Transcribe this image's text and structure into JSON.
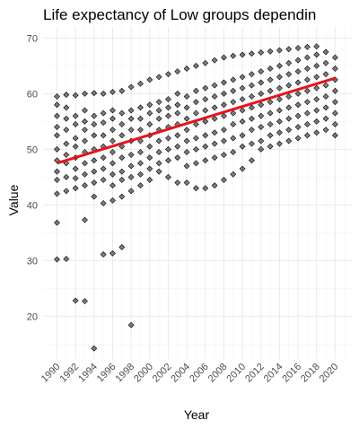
{
  "chart_data": {
    "type": "scatter",
    "title": "Life expectancy of Low groups dependin",
    "xlabel": "Year",
    "ylabel": "Value",
    "xlim": [
      1988.5,
      2021.8
    ],
    "ylim": [
      12.3,
      72
    ],
    "x_ticks": [
      1990,
      1992,
      1994,
      1996,
      1998,
      2000,
      2002,
      2004,
      2006,
      2008,
      2010,
      2012,
      2014,
      2016,
      2018,
      2020
    ],
    "y_ticks": [
      20,
      30,
      40,
      50,
      60,
      70
    ],
    "grid": true,
    "trend_line": {
      "x": [
        1990,
        2020
      ],
      "y": [
        47.5,
        62.8
      ],
      "color": "#e4141b"
    },
    "points": [
      [
        1990,
        30.2
      ],
      [
        1990,
        36.8
      ],
      [
        1990,
        42.0
      ],
      [
        1990,
        44.5
      ],
      [
        1990,
        46.0
      ],
      [
        1990,
        48.0
      ],
      [
        1990,
        50.0
      ],
      [
        1990,
        52.5
      ],
      [
        1990,
        54.0
      ],
      [
        1990,
        56.0
      ],
      [
        1990,
        58.0
      ],
      [
        1990,
        59.5
      ],
      [
        1991,
        30.3
      ],
      [
        1991,
        42.5
      ],
      [
        1991,
        45.0
      ],
      [
        1991,
        47.5
      ],
      [
        1991,
        49.0
      ],
      [
        1991,
        51.0
      ],
      [
        1991,
        53.5
      ],
      [
        1991,
        55.5
      ],
      [
        1991,
        57.5
      ],
      [
        1991,
        59.8
      ],
      [
        1992,
        22.8
      ],
      [
        1992,
        43.0
      ],
      [
        1992,
        44.8
      ],
      [
        1992,
        46.5
      ],
      [
        1992,
        48.5
      ],
      [
        1992,
        50.5
      ],
      [
        1992,
        52.0
      ],
      [
        1992,
        54.5
      ],
      [
        1992,
        56.0
      ],
      [
        1992,
        59.7
      ],
      [
        1993,
        22.7
      ],
      [
        1993,
        37.3
      ],
      [
        1993,
        43.5
      ],
      [
        1993,
        45.5
      ],
      [
        1993,
        47.5
      ],
      [
        1993,
        49.5
      ],
      [
        1993,
        51.5
      ],
      [
        1993,
        53.5
      ],
      [
        1993,
        55.0
      ],
      [
        1993,
        57.0
      ],
      [
        1993,
        60.0
      ],
      [
        1994,
        14.2
      ],
      [
        1994,
        41.5
      ],
      [
        1994,
        44.0
      ],
      [
        1994,
        46.0
      ],
      [
        1994,
        48.0
      ],
      [
        1994,
        50.0
      ],
      [
        1994,
        52.5
      ],
      [
        1994,
        54.5
      ],
      [
        1994,
        56.0
      ],
      [
        1994,
        60.1
      ],
      [
        1995,
        31.1
      ],
      [
        1995,
        40.3
      ],
      [
        1995,
        44.5
      ],
      [
        1995,
        46.5
      ],
      [
        1995,
        48.5
      ],
      [
        1995,
        50.5
      ],
      [
        1995,
        52.5
      ],
      [
        1995,
        54.8
      ],
      [
        1995,
        56.5
      ],
      [
        1995,
        60.0
      ],
      [
        1996,
        31.3
      ],
      [
        1996,
        40.8
      ],
      [
        1996,
        43.5
      ],
      [
        1996,
        45.5
      ],
      [
        1996,
        47.5
      ],
      [
        1996,
        49.5
      ],
      [
        1996,
        51.5
      ],
      [
        1996,
        53.5
      ],
      [
        1996,
        55.5
      ],
      [
        1996,
        57.0
      ],
      [
        1996,
        60.3
      ],
      [
        1997,
        32.4
      ],
      [
        1997,
        41.5
      ],
      [
        1997,
        44.5
      ],
      [
        1997,
        46.0
      ],
      [
        1997,
        48.5
      ],
      [
        1997,
        50.5
      ],
      [
        1997,
        52.5
      ],
      [
        1997,
        54.5
      ],
      [
        1997,
        56.5
      ],
      [
        1997,
        60.5
      ],
      [
        1998,
        18.4
      ],
      [
        1998,
        42.5
      ],
      [
        1998,
        45.0
      ],
      [
        1998,
        47.0
      ],
      [
        1998,
        49.0
      ],
      [
        1998,
        51.5
      ],
      [
        1998,
        53.5
      ],
      [
        1998,
        55.5
      ],
      [
        1998,
        57.0
      ],
      [
        1998,
        61.2
      ],
      [
        1999,
        43.5
      ],
      [
        1999,
        45.5
      ],
      [
        1999,
        47.5
      ],
      [
        1999,
        49.5
      ],
      [
        1999,
        51.5
      ],
      [
        1999,
        53.5
      ],
      [
        1999,
        55.5
      ],
      [
        1999,
        57.5
      ],
      [
        1999,
        61.8
      ],
      [
        2000,
        44.5
      ],
      [
        2000,
        46.5
      ],
      [
        2000,
        48.5
      ],
      [
        2000,
        50.5
      ],
      [
        2000,
        52.5
      ],
      [
        2000,
        54.5
      ],
      [
        2000,
        56.5
      ],
      [
        2000,
        58.0
      ],
      [
        2000,
        62.5
      ],
      [
        2001,
        46.0
      ],
      [
        2001,
        47.5
      ],
      [
        2001,
        49.5
      ],
      [
        2001,
        51.5
      ],
      [
        2001,
        53.5
      ],
      [
        2001,
        55.5
      ],
      [
        2001,
        57.0
      ],
      [
        2001,
        58.5
      ],
      [
        2001,
        63.0
      ],
      [
        2002,
        45.0
      ],
      [
        2002,
        48.0
      ],
      [
        2002,
        50.0
      ],
      [
        2002,
        52.0
      ],
      [
        2002,
        54.0
      ],
      [
        2002,
        56.0
      ],
      [
        2002,
        57.5
      ],
      [
        2002,
        59.0
      ],
      [
        2002,
        63.5
      ],
      [
        2003,
        44.0
      ],
      [
        2003,
        48.5
      ],
      [
        2003,
        50.5
      ],
      [
        2003,
        52.5
      ],
      [
        2003,
        54.5
      ],
      [
        2003,
        56.5
      ],
      [
        2003,
        58.0
      ],
      [
        2003,
        60.0
      ],
      [
        2003,
        64.0
      ],
      [
        2004,
        44.0
      ],
      [
        2004,
        47.0
      ],
      [
        2004,
        49.5
      ],
      [
        2004,
        51.5
      ],
      [
        2004,
        53.5
      ],
      [
        2004,
        55.5
      ],
      [
        2004,
        57.5
      ],
      [
        2004,
        59.5
      ],
      [
        2004,
        64.5
      ],
      [
        2005,
        43.0
      ],
      [
        2005,
        47.5
      ],
      [
        2005,
        50.0
      ],
      [
        2005,
        52.0
      ],
      [
        2005,
        54.5
      ],
      [
        2005,
        56.5
      ],
      [
        2005,
        58.5
      ],
      [
        2005,
        60.5
      ],
      [
        2005,
        65.0
      ],
      [
        2006,
        43.0
      ],
      [
        2006,
        48.0
      ],
      [
        2006,
        50.5
      ],
      [
        2006,
        52.5
      ],
      [
        2006,
        55.0
      ],
      [
        2006,
        57.0
      ],
      [
        2006,
        59.0
      ],
      [
        2006,
        61.0
      ],
      [
        2006,
        65.5
      ],
      [
        2007,
        43.5
      ],
      [
        2007,
        48.5
      ],
      [
        2007,
        51.0
      ],
      [
        2007,
        53.0
      ],
      [
        2007,
        55.5
      ],
      [
        2007,
        57.5
      ],
      [
        2007,
        59.5
      ],
      [
        2007,
        61.5
      ],
      [
        2007,
        66.0
      ],
      [
        2008,
        44.5
      ],
      [
        2008,
        49.0
      ],
      [
        2008,
        51.5
      ],
      [
        2008,
        53.5
      ],
      [
        2008,
        56.0
      ],
      [
        2008,
        58.0
      ],
      [
        2008,
        60.0
      ],
      [
        2008,
        62.0
      ],
      [
        2008,
        66.5
      ],
      [
        2009,
        45.5
      ],
      [
        2009,
        49.5
      ],
      [
        2009,
        52.0
      ],
      [
        2009,
        54.5
      ],
      [
        2009,
        56.5
      ],
      [
        2009,
        58.5
      ],
      [
        2009,
        60.5
      ],
      [
        2009,
        62.5
      ],
      [
        2009,
        66.8
      ],
      [
        2010,
        46.5
      ],
      [
        2010,
        50.5
      ],
      [
        2010,
        52.5
      ],
      [
        2010,
        55.0
      ],
      [
        2010,
        57.0
      ],
      [
        2010,
        59.0
      ],
      [
        2010,
        61.0
      ],
      [
        2010,
        63.0
      ],
      [
        2010,
        67.0
      ],
      [
        2011,
        48.0
      ],
      [
        2011,
        51.0
      ],
      [
        2011,
        53.5
      ],
      [
        2011,
        55.5
      ],
      [
        2011,
        57.5
      ],
      [
        2011,
        59.5
      ],
      [
        2011,
        61.5
      ],
      [
        2011,
        63.5
      ],
      [
        2011,
        67.2
      ],
      [
        2012,
        50.0
      ],
      [
        2012,
        51.5
      ],
      [
        2012,
        54.0
      ],
      [
        2012,
        56.0
      ],
      [
        2012,
        58.0
      ],
      [
        2012,
        60.0
      ],
      [
        2012,
        62.0
      ],
      [
        2012,
        64.0
      ],
      [
        2012,
        67.4
      ],
      [
        2013,
        50.5
      ],
      [
        2013,
        52.5
      ],
      [
        2013,
        54.5
      ],
      [
        2013,
        56.5
      ],
      [
        2013,
        58.5
      ],
      [
        2013,
        60.5
      ],
      [
        2013,
        62.5
      ],
      [
        2013,
        64.5
      ],
      [
        2013,
        67.6
      ],
      [
        2014,
        51.0
      ],
      [
        2014,
        53.0
      ],
      [
        2014,
        55.0
      ],
      [
        2014,
        57.0
      ],
      [
        2014,
        59.0
      ],
      [
        2014,
        61.0
      ],
      [
        2014,
        63.0
      ],
      [
        2014,
        65.0
      ],
      [
        2014,
        67.8
      ],
      [
        2015,
        51.5
      ],
      [
        2015,
        53.5
      ],
      [
        2015,
        55.5
      ],
      [
        2015,
        57.5
      ],
      [
        2015,
        59.5
      ],
      [
        2015,
        61.5
      ],
      [
        2015,
        63.5
      ],
      [
        2015,
        65.5
      ],
      [
        2015,
        68.0
      ],
      [
        2016,
        52.0
      ],
      [
        2016,
        54.0
      ],
      [
        2016,
        56.0
      ],
      [
        2016,
        58.0
      ],
      [
        2016,
        60.0
      ],
      [
        2016,
        62.0
      ],
      [
        2016,
        64.0
      ],
      [
        2016,
        66.0
      ],
      [
        2016,
        68.2
      ],
      [
        2017,
        52.5
      ],
      [
        2017,
        54.5
      ],
      [
        2017,
        56.5
      ],
      [
        2017,
        58.5
      ],
      [
        2017,
        60.5
      ],
      [
        2017,
        62.5
      ],
      [
        2017,
        64.5
      ],
      [
        2017,
        66.5
      ],
      [
        2017,
        68.4
      ],
      [
        2018,
        53.0
      ],
      [
        2018,
        55.0
      ],
      [
        2018,
        57.0
      ],
      [
        2018,
        59.0
      ],
      [
        2018,
        61.0
      ],
      [
        2018,
        63.0
      ],
      [
        2018,
        65.0
      ],
      [
        2018,
        67.0
      ],
      [
        2018,
        68.5
      ],
      [
        2019,
        53.5
      ],
      [
        2019,
        55.5
      ],
      [
        2019,
        57.5
      ],
      [
        2019,
        59.5
      ],
      [
        2019,
        61.5
      ],
      [
        2019,
        63.5
      ],
      [
        2019,
        65.5
      ],
      [
        2019,
        67.5
      ],
      [
        2020,
        52.5
      ],
      [
        2020,
        54.5
      ],
      [
        2020,
        56.5
      ],
      [
        2020,
        58.5
      ],
      [
        2020,
        60.5
      ],
      [
        2020,
        62.5
      ],
      [
        2020,
        64.5
      ],
      [
        2020,
        66.5
      ]
    ]
  }
}
